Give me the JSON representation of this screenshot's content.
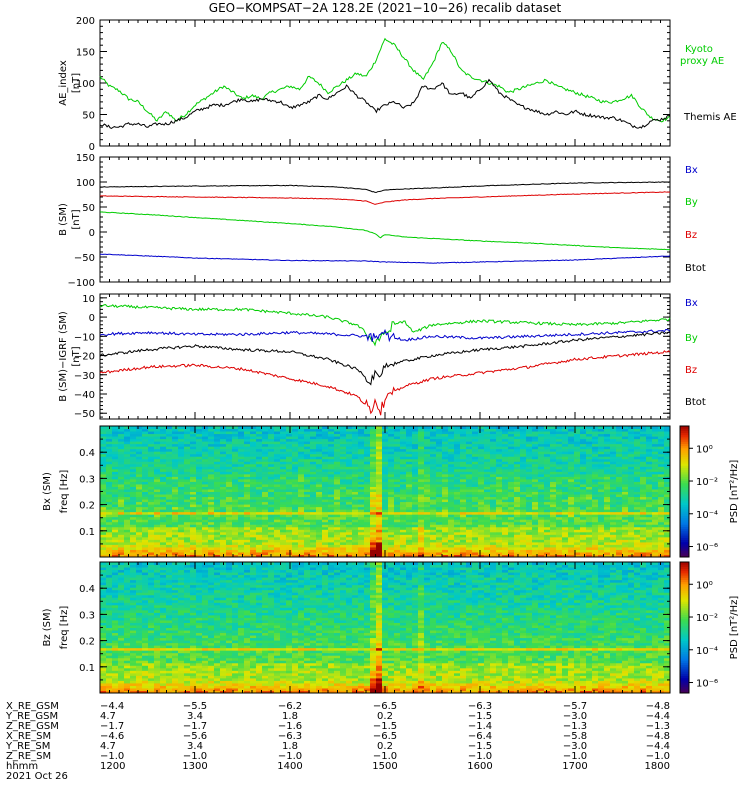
{
  "title": "GEO−KOMPSAT−2A 128.2E (2021−10−26) recalib dataset",
  "colors": {
    "black": "#000000",
    "green": "#00cc00",
    "red": "#dd0000",
    "blue": "#0000cc"
  },
  "chart_data": [
    {
      "id": "ae",
      "type": "line",
      "ylabel": "AE_index",
      "yunit": "[nT]",
      "ylim": [
        0,
        200
      ],
      "yticks": [
        "0",
        "50",
        "100",
        "150",
        "200"
      ],
      "xlim": [
        1200,
        1800
      ],
      "series": [
        {
          "name": "Kyoto proxy AE",
          "color": "green",
          "x": [
            1200,
            1210,
            1220,
            1230,
            1240,
            1250,
            1260,
            1270,
            1280,
            1290,
            1300,
            1310,
            1320,
            1330,
            1340,
            1350,
            1360,
            1370,
            1380,
            1390,
            1400,
            1410,
            1420,
            1430,
            1440,
            1450,
            1460,
            1470,
            1480,
            1490,
            1500,
            1510,
            1520,
            1530,
            1540,
            1550,
            1560,
            1570,
            1580,
            1590,
            1600,
            1610,
            1620,
            1630,
            1640,
            1650,
            1660,
            1670,
            1680,
            1690,
            1700,
            1710,
            1720,
            1730,
            1740,
            1750,
            1760,
            1770,
            1780,
            1790,
            1800
          ],
          "y": [
            110,
            95,
            88,
            75,
            70,
            55,
            40,
            55,
            40,
            50,
            65,
            75,
            85,
            95,
            85,
            75,
            80,
            75,
            85,
            90,
            95,
            90,
            110,
            100,
            85,
            95,
            105,
            115,
            110,
            135,
            170,
            160,
            140,
            120,
            105,
            130,
            165,
            150,
            120,
            110,
            105,
            100,
            95,
            85,
            90,
            95,
            100,
            105,
            95,
            90,
            85,
            80,
            75,
            70,
            70,
            75,
            80,
            60,
            45,
            40,
            45
          ]
        },
        {
          "name": "Themis AE",
          "color": "black",
          "x": [
            1200,
            1210,
            1220,
            1230,
            1240,
            1250,
            1260,
            1270,
            1280,
            1290,
            1300,
            1310,
            1320,
            1330,
            1340,
            1350,
            1360,
            1370,
            1380,
            1390,
            1400,
            1410,
            1420,
            1430,
            1440,
            1450,
            1460,
            1470,
            1480,
            1490,
            1500,
            1510,
            1520,
            1530,
            1540,
            1550,
            1560,
            1570,
            1580,
            1590,
            1600,
            1610,
            1620,
            1630,
            1640,
            1650,
            1660,
            1670,
            1680,
            1690,
            1700,
            1710,
            1720,
            1730,
            1740,
            1750,
            1760,
            1770,
            1780,
            1790,
            1800
          ],
          "y": [
            35,
            30,
            30,
            35,
            35,
            30,
            35,
            35,
            40,
            45,
            55,
            60,
            65,
            65,
            70,
            75,
            70,
            75,
            72,
            70,
            60,
            65,
            70,
            80,
            75,
            85,
            95,
            80,
            70,
            55,
            65,
            70,
            60,
            68,
            95,
            90,
            100,
            80,
            85,
            75,
            90,
            105,
            85,
            75,
            65,
            60,
            55,
            50,
            55,
            50,
            55,
            50,
            48,
            45,
            45,
            40,
            32,
            30,
            40,
            42,
            48
          ]
        }
      ],
      "legend": [
        {
          "text": "Kyoto",
          "color": "green"
        },
        {
          "text": "proxy AE",
          "color": "green"
        },
        {
          "text": "Themis AE",
          "color": "black"
        }
      ]
    },
    {
      "id": "bsm",
      "type": "line",
      "ylabel": "B (SM)",
      "yunit": "[nT]",
      "ylim": [
        -100,
        150
      ],
      "yticks": [
        "−100",
        "−50",
        "0",
        "50",
        "100",
        "150"
      ],
      "xlim": [
        1200,
        1800
      ],
      "series": [
        {
          "name": "Btot",
          "color": "black",
          "x": [
            1200,
            1300,
            1400,
            1450,
            1480,
            1490,
            1500,
            1520,
            1550,
            1600,
            1700,
            1800
          ],
          "y": [
            90,
            92,
            93,
            90,
            85,
            79,
            84,
            86,
            88,
            92,
            98,
            100
          ]
        },
        {
          "name": "Bz",
          "color": "red",
          "x": [
            1200,
            1300,
            1400,
            1450,
            1480,
            1490,
            1500,
            1520,
            1550,
            1600,
            1700,
            1800
          ],
          "y": [
            72,
            70,
            68,
            66,
            62,
            55,
            60,
            64,
            67,
            70,
            76,
            80
          ]
        },
        {
          "name": "By",
          "color": "green",
          "x": [
            1200,
            1250,
            1300,
            1350,
            1400,
            1450,
            1480,
            1490,
            1495,
            1500,
            1520,
            1550,
            1600,
            1650,
            1700,
            1750,
            1800
          ],
          "y": [
            40,
            35,
            29,
            23,
            17,
            10,
            3,
            -4,
            -12,
            -5,
            -10,
            -13,
            -18,
            -22,
            -27,
            -32,
            -35
          ]
        },
        {
          "name": "Bx",
          "color": "blue",
          "x": [
            1200,
            1300,
            1400,
            1480,
            1500,
            1550,
            1600,
            1700,
            1800
          ],
          "y": [
            -44,
            -52,
            -57,
            -58,
            -60,
            -62,
            -60,
            -56,
            -48
          ]
        }
      ],
      "legend": [
        {
          "text": "Bx",
          "color": "blue"
        },
        {
          "text": "By",
          "color": "green"
        },
        {
          "text": "Bz",
          "color": "red"
        },
        {
          "text": "Btot",
          "color": "black"
        }
      ]
    },
    {
      "id": "bdiff",
      "type": "line",
      "ylabel": "B (SM)−IGRF (SM)",
      "yunit": "[nT]",
      "ylim": [
        -53,
        12
      ],
      "yticks": [
        "−50",
        "−40",
        "−30",
        "−20",
        "−10",
        "0",
        "10"
      ],
      "xlim": [
        1200,
        1800
      ],
      "series": [
        {
          "name": "By",
          "color": "green",
          "x": [
            1200,
            1250,
            1300,
            1350,
            1400,
            1440,
            1470,
            1480,
            1490,
            1500,
            1510,
            1520,
            1530,
            1540,
            1550,
            1600,
            1650,
            1700,
            1750,
            1800
          ],
          "y": [
            6,
            5,
            4,
            4,
            2,
            0,
            -4,
            -8,
            -14,
            -8,
            -4,
            -2,
            -8,
            -6,
            -4,
            -2,
            -3,
            -4,
            -3,
            -1
          ]
        },
        {
          "name": "Bx",
          "color": "blue",
          "x": [
            1200,
            1250,
            1300,
            1350,
            1400,
            1450,
            1480,
            1490,
            1500,
            1520,
            1550,
            1600,
            1650,
            1700,
            1750,
            1800
          ],
          "y": [
            -9,
            -8,
            -9,
            -9,
            -8,
            -9,
            -10,
            -11,
            -9,
            -12,
            -10,
            -11,
            -10,
            -9,
            -8,
            -7
          ]
        },
        {
          "name": "Btot",
          "color": "black",
          "x": [
            1200,
            1250,
            1300,
            1350,
            1400,
            1440,
            1470,
            1485,
            1490,
            1495,
            1500,
            1520,
            1550,
            1600,
            1650,
            1700,
            1750,
            1800
          ],
          "y": [
            -20,
            -17,
            -15,
            -17,
            -18,
            -22,
            -27,
            -33,
            -30,
            -34,
            -25,
            -23,
            -20,
            -17,
            -15,
            -12,
            -10,
            -8
          ]
        },
        {
          "name": "Bz",
          "color": "red",
          "x": [
            1200,
            1250,
            1300,
            1350,
            1400,
            1440,
            1470,
            1485,
            1490,
            1495,
            1500,
            1520,
            1550,
            1600,
            1650,
            1700,
            1750,
            1800
          ],
          "y": [
            -29,
            -26,
            -25,
            -27,
            -32,
            -36,
            -41,
            -48,
            -43,
            -49,
            -42,
            -36,
            -32,
            -29,
            -26,
            -22,
            -20,
            -18
          ]
        }
      ],
      "legend": [
        {
          "text": "Bx",
          "color": "blue"
        },
        {
          "text": "By",
          "color": "green"
        },
        {
          "text": "Bz",
          "color": "red"
        },
        {
          "text": "Btot",
          "color": "black"
        }
      ]
    },
    {
      "id": "specbx",
      "type": "heatmap",
      "ylabel": "Bx (SM)",
      "yunit": "freq [Hz]",
      "ylim": [
        0,
        0.5
      ],
      "yticks": [
        "0.1",
        "0.2",
        "0.3",
        "0.4"
      ],
      "xlim": [
        1200,
        1800
      ],
      "colorbar": {
        "label": "PSD [nT²/Hz]",
        "ticks": [
          "10⁰",
          "10⁻²",
          "10⁻⁴",
          "10⁻⁶"
        ]
      }
    },
    {
      "id": "specbz",
      "type": "heatmap",
      "ylabel": "Bz (SM)",
      "yunit": "freq [Hz]",
      "ylim": [
        0,
        0.5
      ],
      "yticks": [
        "0.1",
        "0.2",
        "0.3",
        "0.4"
      ],
      "xlim": [
        1200,
        1800
      ],
      "colorbar": {
        "label": "PSD [nT²/Hz]",
        "ticks": [
          "10⁰",
          "10⁻²",
          "10⁻⁴",
          "10⁻⁶"
        ]
      }
    }
  ],
  "ephemeris": {
    "rows": [
      {
        "label": "X_RE_GSM",
        "values": [
          "−4.4",
          "−5.5",
          "−6.2",
          "−6.5",
          "−6.3",
          "−5.7",
          "−4.8"
        ]
      },
      {
        "label": "Y_RE_GSM",
        "values": [
          "4.7",
          "3.4",
          "1.8",
          "0.2",
          "−1.5",
          "−3.0",
          "−4.4"
        ]
      },
      {
        "label": "Z_RE_GSM",
        "values": [
          "−1.7",
          "−1.7",
          "−1.6",
          "−1.5",
          "−1.4",
          "−1.3",
          "−1.3"
        ]
      },
      {
        "label": "X_RE_SM",
        "values": [
          "−4.6",
          "−5.6",
          "−6.3",
          "−6.5",
          "−6.4",
          "−5.8",
          "−4.8"
        ]
      },
      {
        "label": "Y_RE_SM",
        "values": [
          "4.7",
          "3.4",
          "1.8",
          "0.2",
          "−1.5",
          "−3.0",
          "−4.4"
        ]
      },
      {
        "label": "Z_RE_SM",
        "values": [
          "−1.0",
          "−1.0",
          "−1.0",
          "−1.0",
          "−1.0",
          "−1.0",
          "−1.0"
        ]
      },
      {
        "label": "hhmm",
        "values": [
          "1200",
          "1300",
          "1400",
          "1500",
          "1600",
          "1700",
          "1800"
        ]
      }
    ],
    "date": "2021 Oct 26"
  }
}
